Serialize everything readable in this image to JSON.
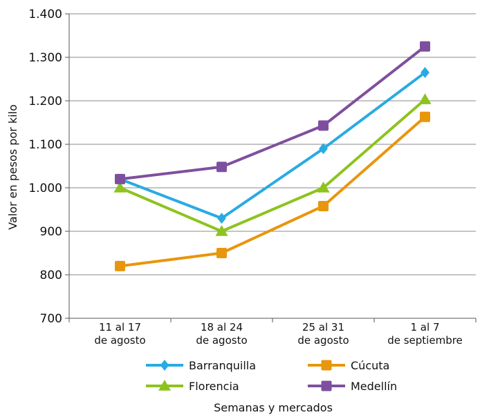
{
  "chart_data": {
    "type": "line",
    "title": "",
    "ylabel": "Valor en pesos por kilo",
    "xlabel": "Semanas y mercados",
    "ylim": [
      700,
      1400
    ],
    "yticks": [
      700,
      800,
      900,
      1000,
      1100,
      1200,
      1300,
      1400
    ],
    "ytick_labels": [
      "700",
      "800",
      "900",
      "1.000",
      "1.100",
      "1.200",
      "1.300",
      "1.400"
    ],
    "categories": [
      [
        "11 al 17",
        "de agosto"
      ],
      [
        "18 al 24",
        "de agosto"
      ],
      [
        "25 al 31",
        "de agosto"
      ],
      [
        "1 al 7",
        "de septiembre"
      ]
    ],
    "grid": "horizontal",
    "legend_position": "bottom",
    "series": [
      {
        "name": "Barranquilla",
        "values": [
          1020,
          930,
          1090,
          1265
        ],
        "color": "#29abe2",
        "marker": "diamond"
      },
      {
        "name": "Cúcuta",
        "values": [
          820,
          850,
          958,
          1163
        ],
        "color": "#e8960c",
        "marker": "square"
      },
      {
        "name": "Florencia",
        "values": [
          1000,
          900,
          1000,
          1203
        ],
        "color": "#8dc31e",
        "marker": "triangle"
      },
      {
        "name": "Medellín",
        "values": [
          1020,
          1048,
          1143,
          1325
        ],
        "color": "#7f4f9f",
        "marker": "square"
      }
    ]
  }
}
